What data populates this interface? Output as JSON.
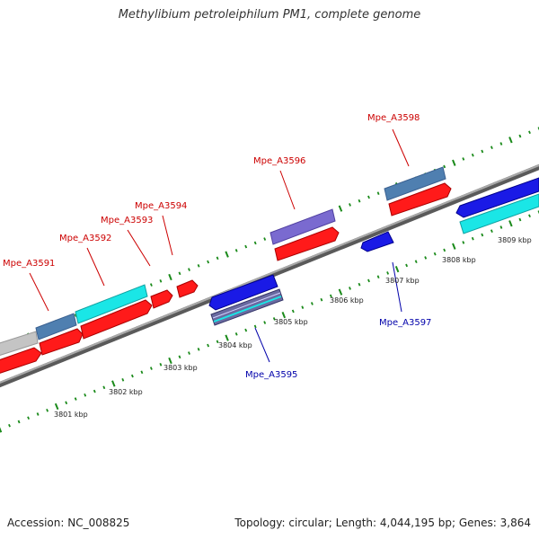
{
  "title": "Methylibium petroleiphilum PM1, complete genome",
  "footer": {
    "accession": "Accession: NC_008825",
    "summary": "Topology: circular; Length: 4,044,195 bp; Genes: 3,864"
  },
  "scale_labels": [
    "3801 kbp",
    "3802 kbp",
    "3803 kbp",
    "3804 kbp",
    "3805 kbp",
    "3806 kbp",
    "3807 kbp",
    "3808 kbp",
    "3809 kbp"
  ],
  "gene_labels": {
    "mpe_a3591": "Mpe_A3591",
    "mpe_a3592": "Mpe_A3592",
    "mpe_a3593": "Mpe_A3593",
    "mpe_a3594": "Mpe_A3594",
    "mpe_a3595": "Mpe_A3595",
    "mpe_a3596": "Mpe_A3596",
    "mpe_a3597": "Mpe_A3597",
    "mpe_a3598": "Mpe_A3598"
  },
  "colors": {
    "forward_label": "#cc0000",
    "reverse_label": "#0000aa",
    "cds_red": "#ff1a1a",
    "cds_blue": "#1a1ae6",
    "cds_cyan": "#1ae6e6",
    "cds_steel": "#4f7fb0",
    "cds_purple": "#7a6ad0",
    "cds_grey": "#c4c4c4",
    "backbone": "#888888",
    "tick": "#1a8a1a"
  }
}
